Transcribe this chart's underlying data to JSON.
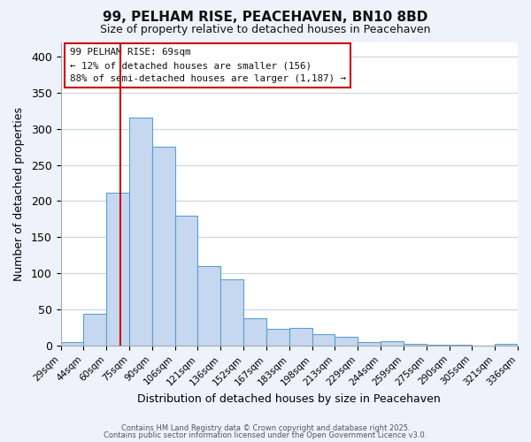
{
  "title": "99, PELHAM RISE, PEACEHAVEN, BN10 8BD",
  "subtitle": "Size of property relative to detached houses in Peacehaven",
  "xlabel": "Distribution of detached houses by size in Peacehaven",
  "ylabel": "Number of detached properties",
  "tick_labels": [
    "29sqm",
    "44sqm",
    "60sqm",
    "75sqm",
    "90sqm",
    "106sqm",
    "121sqm",
    "136sqm",
    "152sqm",
    "167sqm",
    "183sqm",
    "198sqm",
    "213sqm",
    "229sqm",
    "244sqm",
    "259sqm",
    "275sqm",
    "290sqm",
    "305sqm",
    "321sqm",
    "336sqm"
  ],
  "bar_values": [
    5,
    44,
    212,
    315,
    275,
    180,
    110,
    92,
    38,
    23,
    24,
    16,
    12,
    5,
    6,
    2,
    1,
    1,
    0,
    2
  ],
  "bar_color": "#c5d8f0",
  "bar_edge_color": "#5a9fd4",
  "ylim": [
    0,
    420
  ],
  "yticks": [
    0,
    50,
    100,
    150,
    200,
    250,
    300,
    350,
    400
  ],
  "annotation_title": "99 PELHAM RISE: 69sqm",
  "annotation_line1": "← 12% of detached houses are smaller (156)",
  "annotation_line2": "88% of semi-detached houses are larger (1,187) →",
  "vline_color": "#cc0000",
  "footer_line1": "Contains HM Land Registry data © Crown copyright and database right 2025.",
  "footer_line2": "Contains public sector information licensed under the Open Government Licence v3.0.",
  "bg_color": "#eef2fb",
  "plot_bg_color": "#ffffff",
  "grid_color": "#c8d4e8"
}
